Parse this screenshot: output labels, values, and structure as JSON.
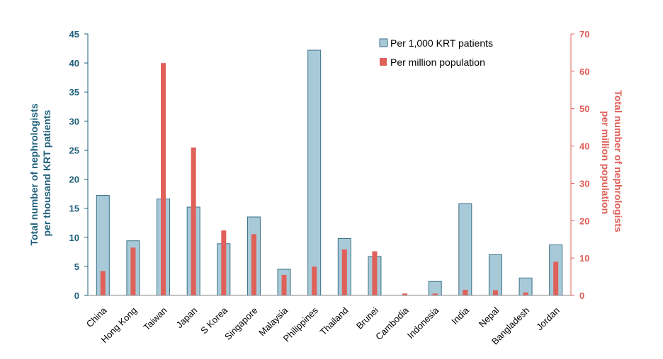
{
  "chart_data": {
    "type": "bar",
    "categories": [
      "China",
      "Hong Kong",
      "Taiwan",
      "Japan",
      "S Korea",
      "Singapore",
      "Malaysia",
      "Philippines",
      "Thailand",
      "Brunei",
      "Cambodia",
      "Indonesia",
      "India",
      "Nepal",
      "Bangladesh",
      "Jordan"
    ],
    "series": [
      {
        "name": "Per 1,000 KRT patients",
        "axis": "left",
        "values": [
          17.2,
          9.4,
          16.6,
          15.2,
          8.9,
          13.5,
          4.5,
          42.2,
          9.8,
          6.7,
          0,
          2.4,
          15.8,
          7.0,
          3.0,
          8.7
        ]
      },
      {
        "name": "Per million population",
        "axis": "right",
        "values": [
          6.5,
          12.8,
          62.2,
          39.6,
          17.4,
          16.4,
          5.5,
          7.7,
          12.3,
          11.8,
          0.5,
          0.5,
          1.5,
          1.4,
          0.8,
          9.0
        ]
      }
    ],
    "ylabel_left": "Total number of nephrologists per thousand KRT patients",
    "ylabel_left_lines": [
      "Total number of nephrologists",
      "per thousand KRT patients"
    ],
    "ylim_left": [
      0,
      45
    ],
    "yticks_left": [
      "0",
      "5",
      "10",
      "15",
      "20",
      "25",
      "30",
      "35",
      "40",
      "45"
    ],
    "ylabel_right": "Total number of nephrologists per million population",
    "ylabel_right_lines": [
      "Total number of nephrologists",
      "per million population"
    ],
    "ylim_right": [
      0,
      70
    ],
    "yticks_right": [
      "0",
      "10",
      "20",
      "30",
      "40",
      "50",
      "60",
      "70"
    ],
    "legend_position": "top-right",
    "grid": false,
    "colors": {
      "left_bar_fill": "#a8cad8",
      "left_bar_stroke": "#3a6f86",
      "right_bar_fill": "#e0605a",
      "left_axis": "#1f5f7a",
      "right_axis": "#e0605a"
    }
  }
}
